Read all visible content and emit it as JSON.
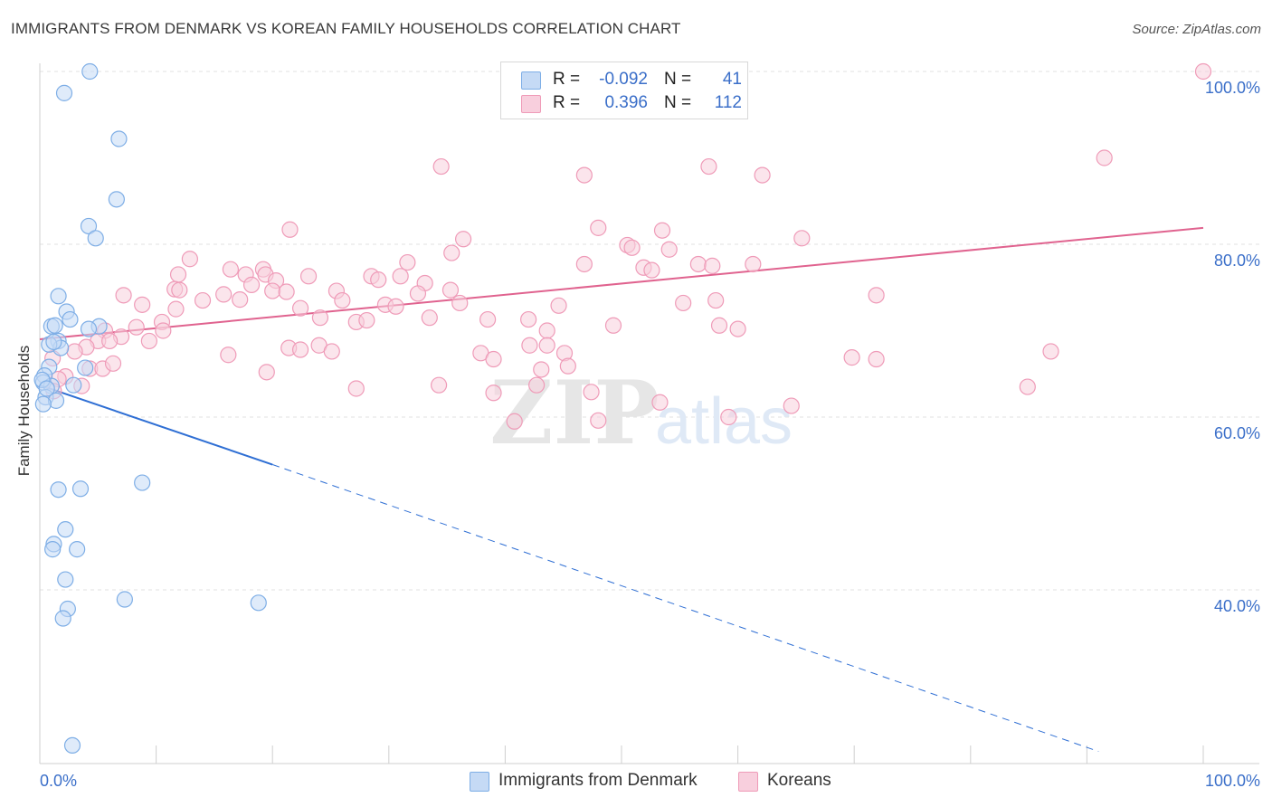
{
  "title": "IMMIGRANTS FROM DENMARK VS KOREAN FAMILY HOUSEHOLDS CORRELATION CHART",
  "source": "Source: ZipAtlas.com",
  "watermark": {
    "zip": "ZIP",
    "atlas": "atlas"
  },
  "legend": [
    {
      "r_label": "R =",
      "r_value": "-0.092",
      "n_label": "N =",
      "n_value": "41"
    },
    {
      "r_label": "R =",
      "r_value": "0.396",
      "n_label": "N =",
      "n_value": "112"
    }
  ],
  "chart_data": {
    "type": "scatter",
    "ylabel": "Family Households",
    "xlim": [
      0,
      100
    ],
    "ylim": [
      20,
      102
    ],
    "x_tick_labels": {
      "left": "0.0%",
      "right": "100.0%"
    },
    "y_ticks": [
      {
        "value": 100,
        "label": "100.0%"
      },
      {
        "value": 80,
        "label": "80.0%"
      },
      {
        "value": 60,
        "label": "60.0%"
      },
      {
        "value": 40,
        "label": "40.0%"
      }
    ],
    "grid": true,
    "series": [
      {
        "name": "Immigrants from Denmark",
        "color": "#7eaee6",
        "fill": "#c5daf5",
        "trend": {
          "x0": 0,
          "y0": 63.7,
          "x1": 20,
          "y1": 54.5,
          "dashed_to_x": 91,
          "dashed_to_y": 21.3,
          "color": "#2f6fd4"
        },
        "points": [
          [
            4.3,
            100
          ],
          [
            2.1,
            97.5
          ],
          [
            6.8,
            92.2
          ],
          [
            6.6,
            85.2
          ],
          [
            4.2,
            82.1
          ],
          [
            4.8,
            80.7
          ],
          [
            1.6,
            74.0
          ],
          [
            2.3,
            72.2
          ],
          [
            2.6,
            71.3
          ],
          [
            1.0,
            70.5
          ],
          [
            1.3,
            70.6
          ],
          [
            5.1,
            70.5
          ],
          [
            4.2,
            70.2
          ],
          [
            1.6,
            68.8
          ],
          [
            1.8,
            68.0
          ],
          [
            0.8,
            68.4
          ],
          [
            3.9,
            65.7
          ],
          [
            0.8,
            65.8
          ],
          [
            0.4,
            64.8
          ],
          [
            0.3,
            64.0
          ],
          [
            1.0,
            63.6
          ],
          [
            2.9,
            63.7
          ],
          [
            0.5,
            62.3
          ],
          [
            1.4,
            61.9
          ],
          [
            0.3,
            61.5
          ],
          [
            8.8,
            52.4
          ],
          [
            1.6,
            51.6
          ],
          [
            3.5,
            51.7
          ],
          [
            2.2,
            47.0
          ],
          [
            1.2,
            45.3
          ],
          [
            1.1,
            44.7
          ],
          [
            3.2,
            44.7
          ],
          [
            2.2,
            41.2
          ],
          [
            7.3,
            38.9
          ],
          [
            18.8,
            38.5
          ],
          [
            2.4,
            37.8
          ],
          [
            2.0,
            36.7
          ],
          [
            2.8,
            22.0
          ],
          [
            0.2,
            64.3
          ],
          [
            0.6,
            63.3
          ],
          [
            1.2,
            68.7
          ]
        ]
      },
      {
        "name": "Koreans",
        "color": "#ef9bb8",
        "fill": "#f8cfdd",
        "trend": {
          "x0": 0,
          "y0": 69.0,
          "x1": 100,
          "y1": 81.9,
          "color": "#e0638f"
        },
        "points": [
          [
            100,
            100
          ],
          [
            91.5,
            90.0
          ],
          [
            34.5,
            89.0
          ],
          [
            46.8,
            88.0
          ],
          [
            57.5,
            89.0
          ],
          [
            62.1,
            88.0
          ],
          [
            21.5,
            81.7
          ],
          [
            48.0,
            81.9
          ],
          [
            53.5,
            81.6
          ],
          [
            36.4,
            80.6
          ],
          [
            65.5,
            80.7
          ],
          [
            50.5,
            79.9
          ],
          [
            50.9,
            79.6
          ],
          [
            54.1,
            79.4
          ],
          [
            35.4,
            79.0
          ],
          [
            12.9,
            78.3
          ],
          [
            31.6,
            77.9
          ],
          [
            46.8,
            77.7
          ],
          [
            51.9,
            77.3
          ],
          [
            56.6,
            77.7
          ],
          [
            61.3,
            77.7
          ],
          [
            52.6,
            77.0
          ],
          [
            57.8,
            77.5
          ],
          [
            16.4,
            77.1
          ],
          [
            19.2,
            77.1
          ],
          [
            11.9,
            76.5
          ],
          [
            17.7,
            76.5
          ],
          [
            19.4,
            76.5
          ],
          [
            23.1,
            76.3
          ],
          [
            28.5,
            76.3
          ],
          [
            31.0,
            76.3
          ],
          [
            20.3,
            75.8
          ],
          [
            18.2,
            75.3
          ],
          [
            29.1,
            75.9
          ],
          [
            33.1,
            75.5
          ],
          [
            11.6,
            74.8
          ],
          [
            12.0,
            74.7
          ],
          [
            25.5,
            74.6
          ],
          [
            35.3,
            74.7
          ],
          [
            7.2,
            74.1
          ],
          [
            15.8,
            74.2
          ],
          [
            20.0,
            74.6
          ],
          [
            32.5,
            74.3
          ],
          [
            36.1,
            73.2
          ],
          [
            21.2,
            74.5
          ],
          [
            14.0,
            73.5
          ],
          [
            26.0,
            73.5
          ],
          [
            29.7,
            73.0
          ],
          [
            44.6,
            72.9
          ],
          [
            58.1,
            73.5
          ],
          [
            8.8,
            73.0
          ],
          [
            11.7,
            72.5
          ],
          [
            17.2,
            73.6
          ],
          [
            22.4,
            72.6
          ],
          [
            30.6,
            72.8
          ],
          [
            55.3,
            73.2
          ],
          [
            71.9,
            74.1
          ],
          [
            10.5,
            71.0
          ],
          [
            24.1,
            71.5
          ],
          [
            27.2,
            71.0
          ],
          [
            28.1,
            71.2
          ],
          [
            33.5,
            71.5
          ],
          [
            38.5,
            71.3
          ],
          [
            42.0,
            71.3
          ],
          [
            49.3,
            70.6
          ],
          [
            43.6,
            70.0
          ],
          [
            58.4,
            70.6
          ],
          [
            60.0,
            70.2
          ],
          [
            8.3,
            70.4
          ],
          [
            10.6,
            70.0
          ],
          [
            5.6,
            70.0
          ],
          [
            7.0,
            69.3
          ],
          [
            5.0,
            68.8
          ],
          [
            6.0,
            68.8
          ],
          [
            9.4,
            68.8
          ],
          [
            4.0,
            68.1
          ],
          [
            3.0,
            67.6
          ],
          [
            16.2,
            67.2
          ],
          [
            21.4,
            68.0
          ],
          [
            22.4,
            67.8
          ],
          [
            24.0,
            68.3
          ],
          [
            25.1,
            67.6
          ],
          [
            37.9,
            67.4
          ],
          [
            39.0,
            66.7
          ],
          [
            42.1,
            68.3
          ],
          [
            43.6,
            68.3
          ],
          [
            45.1,
            67.4
          ],
          [
            45.4,
            65.9
          ],
          [
            43.1,
            65.5
          ],
          [
            4.3,
            65.6
          ],
          [
            5.4,
            65.6
          ],
          [
            6.3,
            66.2
          ],
          [
            1.1,
            66.8
          ],
          [
            2.2,
            64.7
          ],
          [
            1.6,
            64.4
          ],
          [
            1.2,
            63.0
          ],
          [
            3.6,
            63.6
          ],
          [
            19.5,
            65.2
          ],
          [
            27.2,
            63.3
          ],
          [
            34.3,
            63.7
          ],
          [
            39.0,
            62.8
          ],
          [
            47.4,
            62.9
          ],
          [
            42.7,
            63.7
          ],
          [
            64.6,
            61.3
          ],
          [
            69.8,
            66.9
          ],
          [
            71.9,
            66.7
          ],
          [
            84.9,
            63.5
          ],
          [
            86.9,
            67.6
          ],
          [
            48.0,
            59.6
          ],
          [
            53.3,
            61.7
          ],
          [
            40.8,
            59.5
          ],
          [
            59.2,
            60.0
          ]
        ]
      }
    ]
  },
  "bottom_legend": [
    {
      "label": "Immigrants from Denmark"
    },
    {
      "label": "Koreans"
    }
  ]
}
